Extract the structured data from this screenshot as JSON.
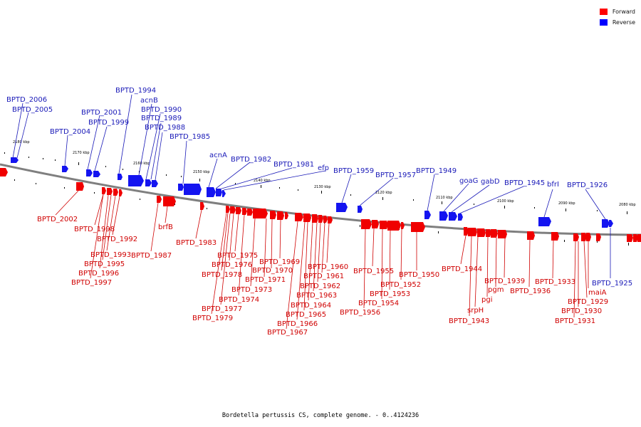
{
  "legend": {
    "forward": "Forward",
    "reverse": "Reverse"
  },
  "colors": {
    "forward": "#ff0000",
    "reverse": "#0000ff",
    "axis": "#808080",
    "forward_text": "#d00000",
    "reverse_text": "#1a1ab8"
  },
  "caption": "Bordetella pertussis CS, complete genome. - 0..4124236",
  "scale_labels": [
    "2180 kbp",
    "2170 kbp",
    "2160 kbp",
    "2150 kbp",
    "2140 kbp",
    "2130 kbp",
    "2120 kbp",
    "2110 kbp",
    "2100 kbp",
    "2090 kbp",
    "2080 kbp"
  ],
  "reverse_labels": [
    "BPTD_2006",
    "BPTD_2005",
    "BPTD_1994",
    "acnB",
    "BPTD_2001",
    "BPTD_1990",
    "BPTD_1989",
    "BPTD_1999",
    "BPTD_1988",
    "BPTD_2004",
    "BPTD_1985",
    "acnA",
    "BPTD_1982",
    "BPTD_1981",
    "efp",
    "BPTD_1959",
    "BPTD_1957",
    "BPTD_1949",
    "goaG",
    "gabD",
    "BPTD_1945",
    "bfrI",
    "BPTD_1926",
    "BPTD_1925"
  ],
  "forward_labels": [
    "BPTD_2002",
    "BPTD_1998",
    "BPTD_1992",
    "BPTD_1993",
    "BPTD_1995",
    "BPTD_1996",
    "BPTD_1997",
    "brfB",
    "BPTD_1987",
    "BPTD_1983",
    "BPTD_1975",
    "BPTD_1976",
    "BPTD_1978",
    "BPTD_1974",
    "BPTD_1977",
    "BPTD_1979",
    "BPTD_1969",
    "BPTD_1970",
    "BPTD_1971",
    "BPTD_1973",
    "BPTD_1960",
    "BPTD_1961",
    "BPTD_1962",
    "BPTD_1963",
    "BPTD_1964",
    "BPTD_1965",
    "BPTD_1966",
    "BPTD_1967",
    "BPTD_1955",
    "BPTD_1950",
    "BPTD_1952",
    "BPTD_1953",
    "BPTD_1954",
    "BPTD_1956",
    "BPTD_1944",
    "BPTD_1939",
    "pgm",
    "pgi",
    "srpH",
    "BPTD_1943",
    "BPTD_1933",
    "BPTD_1936",
    "maiA",
    "BPTD_1929",
    "BPTD_1930",
    "BPTD_1931"
  ]
}
